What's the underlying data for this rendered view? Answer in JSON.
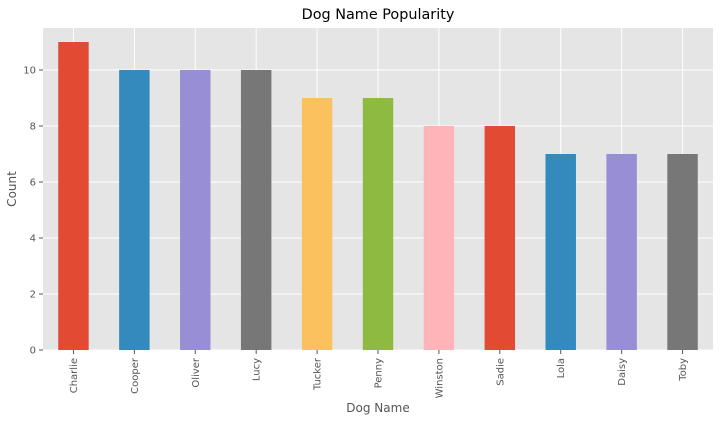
{
  "chart_data": {
    "type": "bar",
    "title": "Dog Name Popularity",
    "xlabel": "Dog Name",
    "ylabel": "Count",
    "categories": [
      "Charlie",
      "Cooper",
      "Oliver",
      "Lucy",
      "Tucker",
      "Penny",
      "Winston",
      "Sadie",
      "Lola",
      "Daisy",
      "Toby"
    ],
    "values": [
      11,
      10,
      10,
      10,
      9,
      9,
      8,
      8,
      7,
      7,
      7
    ],
    "ylim": [
      0,
      11.5
    ],
    "yticks": [
      0,
      2,
      4,
      6,
      8,
      10
    ],
    "grid": true,
    "legend": "none",
    "style": {
      "background": "#e5e5e5",
      "grid_color": "#ffffff",
      "palette": [
        "#e24a33",
        "#348abd",
        "#988ed5",
        "#777777",
        "#fbc15e",
        "#8eba42",
        "#ffb5b8"
      ]
    }
  }
}
